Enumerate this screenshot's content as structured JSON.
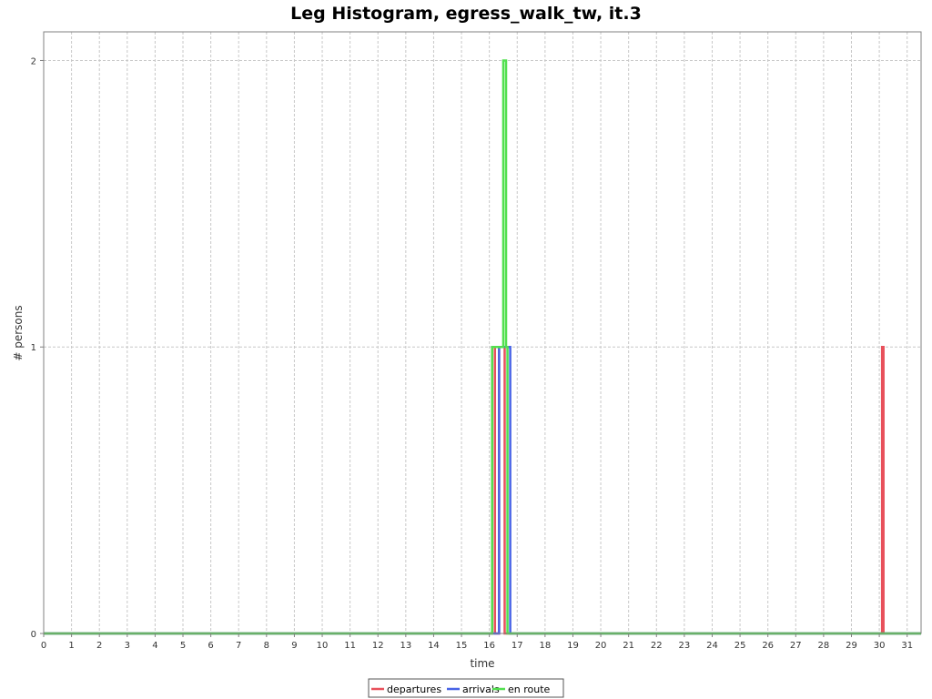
{
  "chart_data": {
    "type": "line",
    "title": "Leg Histogram, egress_walk_tw, it.3",
    "xlabel": "time",
    "ylabel": "# persons",
    "xlim": [
      0,
      31.5
    ],
    "ylim": [
      0,
      2.1
    ],
    "x_ticks": [
      0,
      1,
      2,
      3,
      4,
      5,
      6,
      7,
      8,
      9,
      10,
      11,
      12,
      13,
      14,
      15,
      16,
      17,
      18,
      19,
      20,
      21,
      22,
      23,
      24,
      25,
      26,
      27,
      28,
      29,
      30,
      31
    ],
    "y_ticks": [
      0,
      1,
      2
    ],
    "grid": true,
    "legend_position": "bottom-center",
    "series": [
      {
        "name": "departures",
        "color": "#e8505b",
        "points": [
          [
            0,
            0
          ],
          [
            16.1,
            0
          ],
          [
            16.1,
            1
          ],
          [
            16.2,
            1
          ],
          [
            16.2,
            0
          ],
          [
            16.35,
            0
          ],
          [
            16.35,
            1
          ],
          [
            16.55,
            1
          ],
          [
            16.55,
            0
          ],
          [
            30.1,
            0
          ],
          [
            30.1,
            1
          ],
          [
            30.15,
            1
          ],
          [
            30.15,
            0
          ],
          [
            31.5,
            0
          ]
        ]
      },
      {
        "name": "arrivals",
        "color": "#4763e6",
        "points": [
          [
            0,
            0
          ],
          [
            16.35,
            0
          ],
          [
            16.35,
            1
          ],
          [
            16.75,
            1
          ],
          [
            16.75,
            0
          ],
          [
            31.5,
            0
          ]
        ]
      },
      {
        "name": "en route",
        "color": "#52e04f",
        "points": [
          [
            0,
            0
          ],
          [
            16.1,
            0
          ],
          [
            16.1,
            1
          ],
          [
            16.5,
            1
          ],
          [
            16.5,
            2
          ],
          [
            16.6,
            2
          ],
          [
            16.6,
            1
          ],
          [
            16.65,
            1
          ],
          [
            16.65,
            0
          ],
          [
            31.5,
            0
          ]
        ]
      }
    ]
  }
}
